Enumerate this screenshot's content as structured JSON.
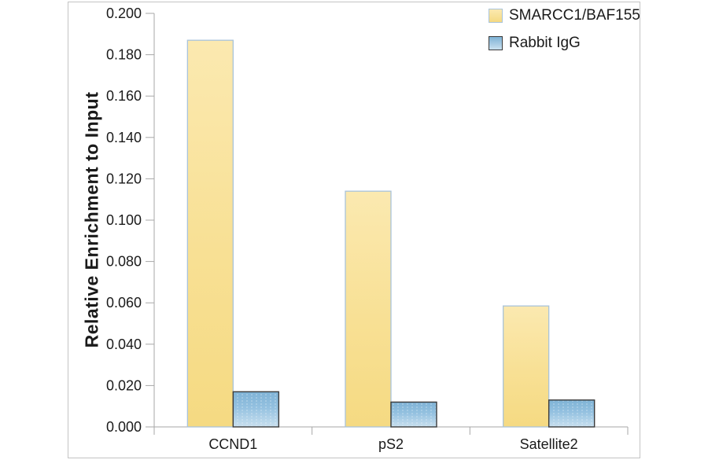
{
  "chart_data": {
    "type": "bar",
    "title": "",
    "xlabel": "",
    "ylabel": "Relative Enrichment to Input",
    "categories": [
      "CCND1",
      "pS2",
      "Satellite2"
    ],
    "series": [
      {
        "name": "SMARCC1/BAF155",
        "values": [
          0.187,
          0.114,
          0.0585
        ],
        "fill_top": "#FBE9B0",
        "fill_mid": "#F8E094",
        "fill_bottom": "#F5DA82",
        "border_color": "#A9C3DA"
      },
      {
        "name": "Rabbit IgG",
        "values": [
          0.017,
          0.012,
          0.013
        ],
        "fill_top": "#7EB2D5",
        "fill_mid": "#94C1E0",
        "fill_bottom": "#C9E0EF",
        "border_color": "#3B3B3B"
      }
    ],
    "ylim": [
      0.0,
      0.2
    ],
    "ytick_step": 0.02,
    "ytick_labels": [
      "0.000",
      "0.020",
      "0.040",
      "0.060",
      "0.080",
      "0.100",
      "0.120",
      "0.140",
      "0.160",
      "0.180",
      "0.200"
    ],
    "grid": false,
    "legend_position": "top-right",
    "axis_color": "#A7A7A7",
    "text_color": "#1A1A1A",
    "panel_border_color": "#C3C3C3",
    "background_color": "#FFFFFF"
  }
}
